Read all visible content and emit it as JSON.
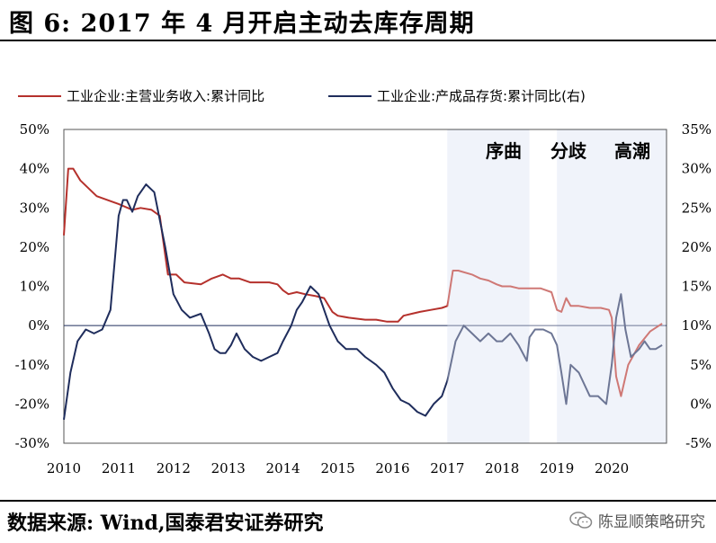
{
  "title": "图 6:  2017 年 4 月开启主动去库存周期",
  "source": "数据来源:  Wind,国泰君安证券研究",
  "watermark": "陈显顺策略研究",
  "chart_data": {
    "type": "line",
    "legend_position": "top",
    "grid": false,
    "x_ticks": [
      "2010",
      "2011",
      "2012",
      "2013",
      "2014",
      "2015",
      "2016",
      "2017",
      "2018",
      "2019",
      "2020"
    ],
    "xlim": [
      2010.0,
      2021.0
    ],
    "y_left_ticks": [
      "50%",
      "40%",
      "30%",
      "20%",
      "10%",
      "0%",
      "-10%",
      "-20%",
      "-30%"
    ],
    "y_left_lim": [
      -30,
      50
    ],
    "y_right_ticks": [
      "35%",
      "30%",
      "25%",
      "20%",
      "15%",
      "10%",
      "5%",
      "0%",
      "-5%"
    ],
    "y_right_lim": [
      -5,
      35
    ],
    "phases": [
      {
        "label": "序曲",
        "start": 2017.0,
        "end": 2018.5,
        "color": "#e8edf7"
      },
      {
        "label": "分歧",
        "start": 2018.5,
        "end": 2019.0,
        "color": "#ffffff"
      },
      {
        "label": "高潮",
        "start": 2019.0,
        "end": 2021.0,
        "color": "#e8edf7"
      }
    ],
    "series": [
      {
        "name": "工业企业:主营业务收入:累计同比",
        "axis": "left",
        "color": "#b5312c",
        "x": [
          2010.0,
          2010.08,
          2010.17,
          2010.3,
          2010.6,
          2011.0,
          2011.25,
          2011.4,
          2011.6,
          2011.75,
          2011.9,
          2012.05,
          2012.2,
          2012.5,
          2012.7,
          2012.9,
          2013.05,
          2013.2,
          2013.4,
          2013.55,
          2013.75,
          2013.9,
          2014.0,
          2014.1,
          2014.25,
          2014.4,
          2014.6,
          2014.75,
          2014.9,
          2015.0,
          2015.2,
          2015.5,
          2015.7,
          2015.9,
          2016.1,
          2016.2,
          2016.35,
          2016.5,
          2016.7,
          2016.9,
          2017.0,
          2017.1,
          2017.2,
          2017.45,
          2017.6,
          2017.75,
          2017.9,
          2018.0,
          2018.15,
          2018.3,
          2018.5,
          2018.7,
          2018.9,
          2019.0,
          2019.08,
          2019.17,
          2019.25,
          2019.4,
          2019.6,
          2019.8,
          2019.95,
          2020.0,
          2020.08,
          2020.17,
          2020.3,
          2020.5,
          2020.7,
          2020.92
        ],
        "values": [
          23,
          40,
          40,
          37,
          33,
          31,
          29.5,
          30,
          29.5,
          28,
          13,
          13,
          11,
          10.5,
          12,
          13,
          12,
          12,
          11,
          11,
          11,
          10.5,
          9,
          8,
          8.5,
          8,
          7.5,
          7,
          3.5,
          2.5,
          2,
          1.5,
          1.5,
          1,
          1,
          2.5,
          3,
          3.5,
          4,
          4.5,
          5,
          14,
          14,
          13,
          12,
          11.5,
          10.5,
          10,
          10,
          9.5,
          9.5,
          9.5,
          8.5,
          4,
          3.5,
          7,
          5,
          5,
          4.5,
          4.5,
          4,
          2,
          -13,
          -18,
          -10,
          -5,
          -1.5,
          0.5
        ]
      },
      {
        "name": "工业企业:产成品存货:累计同比(右)",
        "axis": "right",
        "color": "#1f2d5c",
        "x": [
          2010.0,
          2010.12,
          2010.25,
          2010.4,
          2010.55,
          2010.7,
          2010.85,
          2011.0,
          2011.08,
          2011.15,
          2011.25,
          2011.35,
          2011.5,
          2011.65,
          2011.75,
          2011.85,
          2012.0,
          2012.15,
          2012.3,
          2012.5,
          2012.65,
          2012.75,
          2012.85,
          2012.95,
          2013.05,
          2013.15,
          2013.3,
          2013.45,
          2013.6,
          2013.75,
          2013.9,
          2014.0,
          2014.15,
          2014.25,
          2014.35,
          2014.5,
          2014.65,
          2014.75,
          2014.85,
          2015.0,
          2015.15,
          2015.35,
          2015.5,
          2015.7,
          2015.85,
          2016.0,
          2016.15,
          2016.3,
          2016.45,
          2016.6,
          2016.75,
          2016.9,
          2017.0,
          2017.15,
          2017.3,
          2017.45,
          2017.6,
          2017.75,
          2017.9,
          2018.0,
          2018.15,
          2018.3,
          2018.45,
          2018.5,
          2018.6,
          2018.75,
          2018.9,
          2019.0,
          2019.08,
          2019.17,
          2019.25,
          2019.4,
          2019.6,
          2019.75,
          2019.9,
          2020.0,
          2020.08,
          2020.17,
          2020.25,
          2020.35,
          2020.5,
          2020.6,
          2020.7,
          2020.8,
          2020.92
        ],
        "values": [
          -2,
          4,
          8,
          9.5,
          9,
          9.5,
          12,
          24,
          26,
          26,
          24.5,
          26.5,
          28,
          27,
          23.5,
          20,
          14,
          12,
          11,
          11.5,
          9,
          7,
          6.5,
          6.5,
          7.5,
          9,
          7,
          6,
          5.5,
          6,
          6.5,
          8,
          10,
          12,
          13,
          15,
          14,
          12,
          10,
          8,
          7,
          7,
          6,
          5,
          4,
          2,
          0.5,
          0,
          -1,
          -1.5,
          0,
          1,
          3,
          8,
          10,
          9,
          8,
          9,
          8,
          8,
          9,
          7.5,
          5.5,
          8.5,
          9.5,
          9.5,
          9,
          7.5,
          4,
          0,
          5,
          4,
          1,
          1,
          0,
          5,
          11,
          14,
          9.5,
          6,
          7,
          8,
          7,
          7,
          7.5
        ]
      }
    ]
  }
}
